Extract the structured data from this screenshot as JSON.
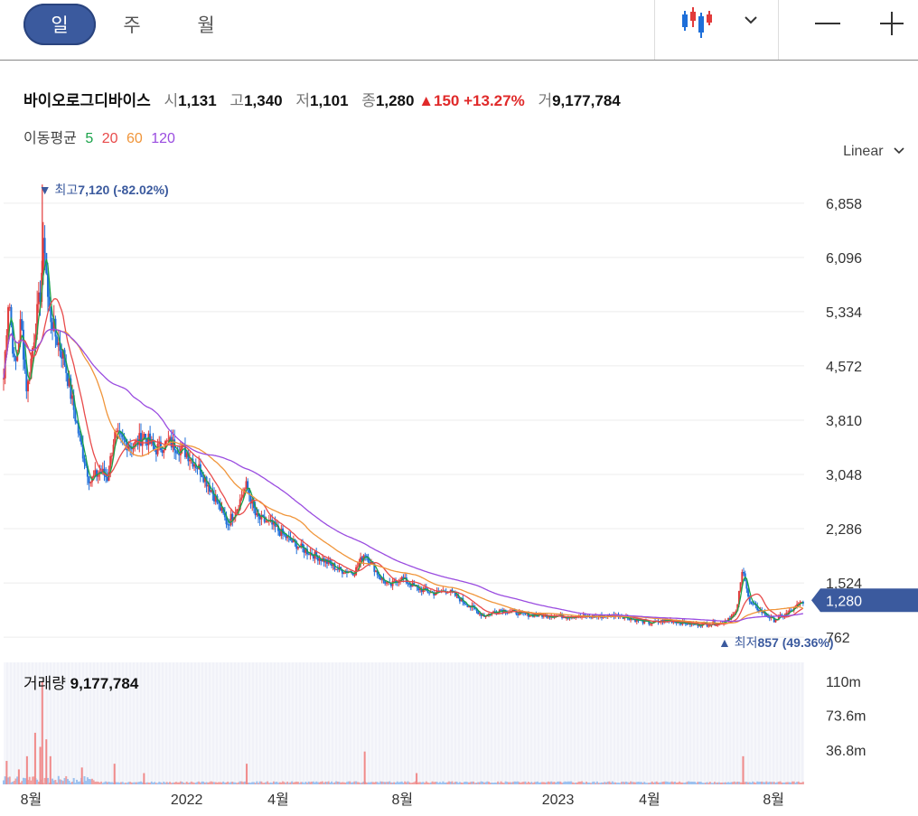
{
  "periods": [
    {
      "label": "일",
      "active": true
    },
    {
      "label": "주",
      "active": false
    },
    {
      "label": "월",
      "active": false
    }
  ],
  "toolbar": {
    "chart_type_icon": "candlestick-icon",
    "dropdown_icon": "chevron-down-icon",
    "zoom_out_icon": "minus-icon",
    "zoom_in_icon": "plus-icon"
  },
  "stock": {
    "name": "바이오로그디바이스",
    "open_label": "시",
    "open": "1,131",
    "high_label": "고",
    "high": "1,340",
    "low_label": "저",
    "low": "1,101",
    "close_label": "종",
    "close": "1,280",
    "change": "150",
    "change_pct": "+13.27%",
    "volume_label": "거",
    "volume": "9,177,784"
  },
  "ma": {
    "label": "이동평균",
    "p5": "5",
    "p20": "20",
    "p60": "60",
    "p120": "120"
  },
  "scale_mode": "Linear",
  "colors": {
    "up": "#e23b3b",
    "down": "#1e6fd9",
    "ma5": "#1aa34a",
    "ma20": "#e84a4a",
    "ma60": "#f0953a",
    "ma120": "#9a4ce0",
    "accent": "#3b5a9e"
  },
  "chart_data": {
    "type": "candlestick",
    "scale": "linear",
    "y_ticks": [
      6858,
      6096,
      5334,
      4572,
      3810,
      3048,
      2286,
      1524,
      762
    ],
    "y_tick_labels": [
      "6,858",
      "6,096",
      "5,334",
      "4,572",
      "3,810",
      "3,048",
      "2,286",
      "1,524",
      "762"
    ],
    "ylim": [
      700,
      7300
    ],
    "x_range": [
      "2021-07-05",
      "2023-08-31"
    ],
    "x_ticks": [
      {
        "label": "8월",
        "date": "2021-08-01"
      },
      {
        "label": "2022",
        "date": "2022-01-01"
      },
      {
        "label": "4월",
        "date": "2022-04-01"
      },
      {
        "label": "8월",
        "date": "2022-08-01"
      },
      {
        "label": "2023",
        "date": "2023-01-01"
      },
      {
        "label": "4월",
        "date": "2023-04-01"
      },
      {
        "label": "8월",
        "date": "2023-08-01"
      }
    ],
    "price_path": [
      [
        "2021-07-05",
        4400
      ],
      [
        "2021-07-10",
        5600
      ],
      [
        "2021-07-16",
        4500
      ],
      [
        "2021-07-22",
        5200
      ],
      [
        "2021-07-28",
        4200
      ],
      [
        "2021-08-04",
        5000
      ],
      [
        "2021-08-10",
        5600
      ],
      [
        "2021-08-14",
        6400
      ],
      [
        "2021-08-18",
        5400
      ],
      [
        "2021-08-25",
        5000
      ],
      [
        "2021-09-02",
        4700
      ],
      [
        "2021-09-10",
        4100
      ],
      [
        "2021-09-20",
        3400
      ],
      [
        "2021-09-28",
        2950
      ],
      [
        "2021-10-08",
        3100
      ],
      [
        "2021-10-15",
        3000
      ],
      [
        "2021-10-22",
        3600
      ],
      [
        "2021-11-01",
        3500
      ],
      [
        "2021-11-10",
        3450
      ],
      [
        "2021-11-20",
        3600
      ],
      [
        "2021-12-01",
        3400
      ],
      [
        "2021-12-15",
        3500
      ],
      [
        "2022-01-01",
        3350
      ],
      [
        "2022-01-15",
        3100
      ],
      [
        "2022-01-28",
        2750
      ],
      [
        "2022-02-10",
        2350
      ],
      [
        "2022-02-20",
        2600
      ],
      [
        "2022-03-01",
        2900
      ],
      [
        "2022-03-10",
        2450
      ],
      [
        "2022-03-25",
        2350
      ],
      [
        "2022-04-10",
        2150
      ],
      [
        "2022-04-25",
        2000
      ],
      [
        "2022-05-15",
        1850
      ],
      [
        "2022-06-01",
        1700
      ],
      [
        "2022-06-15",
        1680
      ],
      [
        "2022-06-25",
        1950
      ],
      [
        "2022-07-10",
        1600
      ],
      [
        "2022-07-20",
        1480
      ],
      [
        "2022-07-30",
        1600
      ],
      [
        "2022-08-15",
        1450
      ],
      [
        "2022-09-01",
        1380
      ],
      [
        "2022-09-15",
        1420
      ],
      [
        "2022-10-01",
        1250
      ],
      [
        "2022-10-20",
        1060
      ],
      [
        "2022-11-05",
        1150
      ],
      [
        "2022-12-01",
        1080
      ],
      [
        "2023-01-01",
        1060
      ],
      [
        "2023-02-01",
        1050
      ],
      [
        "2023-03-01",
        1070
      ],
      [
        "2023-04-01",
        960
      ],
      [
        "2023-04-20",
        1000
      ],
      [
        "2023-05-15",
        940
      ],
      [
        "2023-06-10",
        960
      ],
      [
        "2023-06-25",
        1100
      ],
      [
        "2023-07-02",
        1750
      ],
      [
        "2023-07-08",
        1250
      ],
      [
        "2023-07-20",
        1120
      ],
      [
        "2023-08-01",
        1000
      ],
      [
        "2023-08-15",
        1100
      ],
      [
        "2023-08-31",
        1280
      ]
    ],
    "max_marker": {
      "label": "최고",
      "value": "7,120",
      "pct": "(-82.02%)",
      "date": "2021-08-12",
      "price": 7120
    },
    "min_marker": {
      "label": "최저",
      "value": "857",
      "pct": "(49.36%)",
      "date": "2023-06-01",
      "price": 857
    },
    "current_price": {
      "label": "1,280",
      "value": 1280
    },
    "volume": {
      "label": "거래량",
      "value": "9,177,784",
      "y_ticks": [
        110000000,
        73600000,
        36800000
      ],
      "y_tick_labels": [
        "110m",
        "73.6m",
        "36.8m"
      ],
      "ylim": [
        0,
        130000000
      ],
      "spikes": [
        [
          "2021-07-08",
          25000000
        ],
        [
          "2021-07-20",
          16000000
        ],
        [
          "2021-07-28",
          30000000
        ],
        [
          "2021-08-05",
          55000000
        ],
        [
          "2021-08-10",
          40000000
        ],
        [
          "2021-08-12",
          110000000
        ],
        [
          "2021-08-16",
          48000000
        ],
        [
          "2021-08-20",
          30000000
        ],
        [
          "2021-09-20",
          18000000
        ],
        [
          "2021-10-22",
          22000000
        ],
        [
          "2021-11-20",
          12000000
        ],
        [
          "2022-03-01",
          22000000
        ],
        [
          "2022-06-25",
          35000000
        ],
        [
          "2022-08-15",
          12000000
        ],
        [
          "2023-07-02",
          30000000
        ]
      ]
    }
  }
}
